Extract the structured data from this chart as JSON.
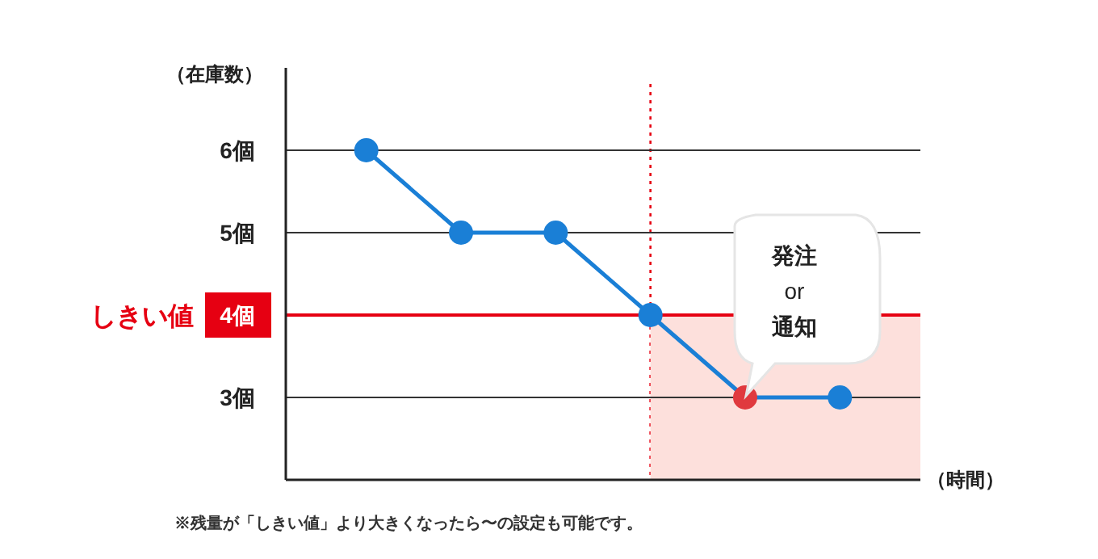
{
  "chart_data": {
    "type": "line",
    "ylabel": "（在庫数）",
    "xlabel": "（時間）",
    "categories": [
      null,
      null,
      null,
      null,
      null,
      null
    ],
    "ylim": [
      2,
      7
    ],
    "yticks": [
      {
        "value": 3,
        "label": "3個"
      },
      {
        "value": 4,
        "label": "4個"
      },
      {
        "value": 5,
        "label": "5個"
      },
      {
        "value": 6,
        "label": "6個"
      }
    ],
    "tick_labels": "y",
    "grid": "y",
    "marker": "circle",
    "line_style": "solid",
    "series": [
      {
        "color": "#1a7fd6",
        "values": [
          6,
          5,
          5,
          4,
          3,
          3
        ],
        "colors": [
          "#1a7fd6",
          "#1a7fd6",
          "#1a7fd6",
          "#1a7fd6",
          "#e0393e",
          "#1a7fd6"
        ]
      }
    ],
    "ref_lines": [
      {
        "axis": "y",
        "value": 4,
        "label": "しきい値",
        "color": "#e60012",
        "line_style": "solid"
      }
    ],
    "bands": [
      {
        "axis": "y",
        "from": 2,
        "to": 4,
        "color": "#fde0dc"
      }
    ],
    "annotations": [
      "発注\nor\n通知",
      "※残量が「しきい値」より大きくなったら〜の設定も可能です。"
    ]
  }
}
